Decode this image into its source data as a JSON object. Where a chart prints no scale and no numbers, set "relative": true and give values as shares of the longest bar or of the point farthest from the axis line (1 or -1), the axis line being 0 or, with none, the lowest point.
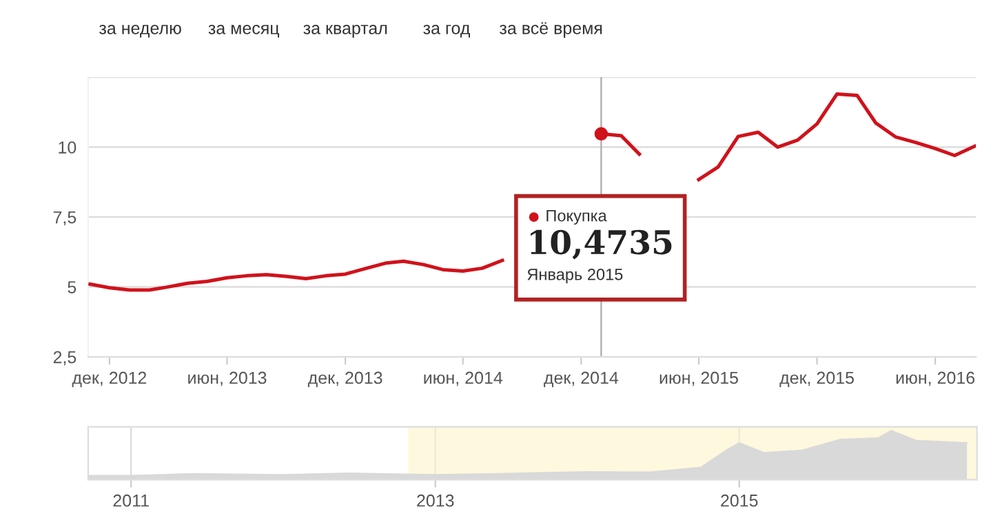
{
  "chart_data": [
    {
      "type": "line",
      "annotations": [
        "за неделю",
        "за месяц",
        "за квартал",
        "за год",
        "за всё время",
        {
          "text": "10,4735",
          "x": "2015-01",
          "y": 10.4735
        },
        "Январь 2015"
      ],
      "x": [
        "2012-11",
        "2012-12",
        "2013-01",
        "2013-02",
        "2013-03",
        "2013-04",
        "2013-05",
        "2013-06",
        "2013-07",
        "2013-08",
        "2013-09",
        "2013-10",
        "2013-11",
        "2013-12",
        "2014-01",
        "2014-02",
        "2014-03",
        "2014-04",
        "2014-05",
        "2014-06",
        "2014-07",
        "2014-08",
        "2014-09",
        "2014-10",
        "2014-11",
        "2014-12",
        "2015-01",
        "2015-02",
        "2015-03",
        "2015-04",
        "2015-05",
        "2015-06",
        "2015-07",
        "2015-08",
        "2015-09",
        "2015-10",
        "2015-11",
        "2015-12",
        "2016-01",
        "2016-02",
        "2016-03",
        "2016-04",
        "2016-05",
        "2016-06",
        "2016-07",
        "2016-08"
      ],
      "series": [
        {
          "name": "Покупка",
          "color": "#d0121b",
          "values": [
            5.1,
            4.97,
            4.89,
            4.89,
            5.0,
            5.13,
            5.2,
            5.33,
            5.4,
            5.44,
            5.38,
            5.3,
            5.4,
            5.46,
            5.66,
            5.85,
            5.92,
            5.8,
            5.62,
            5.57,
            5.67,
            5.95,
            null,
            null,
            null,
            null,
            10.4735,
            10.41,
            9.75,
            null,
            null,
            8.84,
            9.29,
            10.38,
            10.53,
            10.0,
            10.25,
            10.83,
            11.9,
            11.85,
            10.86,
            10.36,
            10.17,
            9.95,
            9.7,
            10.03
          ]
        }
      ],
      "xlim": [
        "2012-10-29",
        "2016-08-03"
      ],
      "xticks": [
        {
          "value": "2012-12",
          "label": "дек, 2012"
        },
        {
          "value": "2013-06",
          "label": "июн, 2013"
        },
        {
          "value": "2013-12",
          "label": "дек, 2013"
        },
        {
          "value": "2014-06",
          "label": "июн, 2014"
        },
        {
          "value": "2014-12",
          "label": "дек, 2014"
        },
        {
          "value": "2015-06",
          "label": "июн, 2015"
        },
        {
          "value": "2015-12",
          "label": "дек, 2015"
        },
        {
          "value": "2016-06",
          "label": "июн, 2016"
        }
      ],
      "ylim": [
        2.5,
        12.5
      ],
      "yticks": [
        {
          "value": 2.5,
          "label": "2,5"
        },
        5,
        {
          "value": 7.5,
          "label": "7,5"
        },
        10,
        {
          "value": 12.5,
          "label": null
        }
      ],
      "ref_lines": [
        {
          "axis": "x",
          "value": "2015-01",
          "color": "#aaaaaa"
        }
      ],
      "grid": "y",
      "legend": "center"
    },
    {
      "type": "area",
      "relative": true,
      "tick_labels": "x",
      "x": [
        "2010-09-20",
        "2011-01",
        "2011-06",
        "2012-01",
        "2012-06",
        "2013-01",
        "2013-06",
        "2014-01",
        "2014-06",
        "2014-10",
        "2014-12",
        "2015-01",
        "2015-03",
        "2015-06",
        "2015-09",
        "2015-12",
        "2016-01",
        "2016-03",
        "2016-07"
      ],
      "series": [
        {
          "color": "#d9d9d9",
          "values": [
            0.08,
            0.08,
            0.12,
            0.1,
            0.13,
            0.1,
            0.12,
            0.16,
            0.15,
            0.25,
            0.6,
            0.75,
            0.55,
            0.6,
            0.82,
            0.85,
            1.0,
            0.8,
            0.75
          ]
        }
      ],
      "xlim": [
        "2010-09-20",
        "2016-07-25"
      ],
      "xticks": [
        {
          "value": "2011",
          "label": "2011"
        },
        {
          "value": "2013",
          "label": "2013"
        },
        {
          "value": "2015",
          "label": "2015"
        }
      ],
      "bands": [
        {
          "axis": "x",
          "from": "2012-10-28",
          "to": "2016-07-25",
          "color": "#fdf3c8"
        }
      ],
      "grid": "x"
    }
  ]
}
